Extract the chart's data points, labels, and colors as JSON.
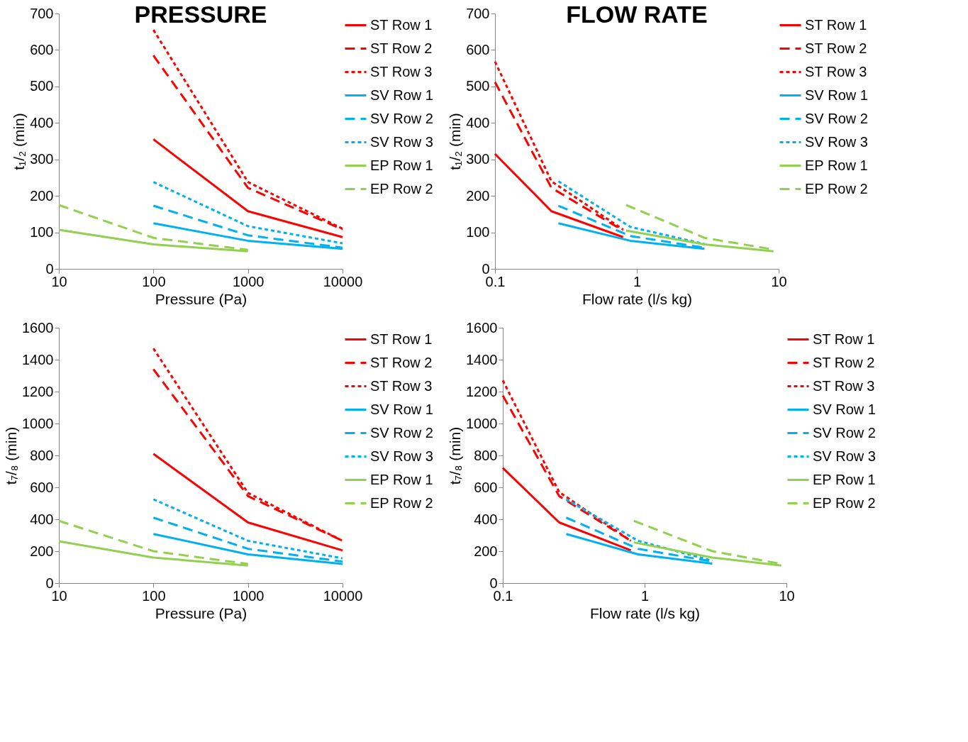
{
  "chart_data": [
    {
      "type": "line",
      "title": "PRESSURE",
      "xlabel": "Pressure (Pa)",
      "ylabel": "t₁/₂ (min)",
      "log": "x",
      "grid": false,
      "legend": "right",
      "marker": "none",
      "xlim": [
        10,
        10000
      ],
      "xticks": [
        10,
        100,
        1000,
        10000
      ],
      "ylim": [
        0,
        700
      ],
      "yticks": [
        0,
        100,
        200,
        300,
        400,
        500,
        600,
        700
      ],
      "series": [
        {
          "name": "ST Row 1",
          "color": "#ff0000",
          "line_style": "solid",
          "x": [
            100,
            1000,
            10000
          ],
          "values": [
            355,
            158,
            87
          ]
        },
        {
          "name": "ST Row 2",
          "color": "#ff0000",
          "line_style": "dashed",
          "x": [
            100,
            1000,
            10000
          ],
          "values": [
            585,
            222,
            108
          ]
        },
        {
          "name": "ST Row 3",
          "color": "#ff0000",
          "line_style": "dotted",
          "x": [
            100,
            1000,
            10000
          ],
          "values": [
            655,
            238,
            110
          ]
        },
        {
          "name": "SV Row 1",
          "color": "#00b0f0",
          "line_style": "solid",
          "x": [
            100,
            1000,
            10000
          ],
          "values": [
            125,
            77,
            55
          ]
        },
        {
          "name": "SV Row 2",
          "color": "#00b0f0",
          "line_style": "dashed",
          "x": [
            100,
            1000,
            10000
          ],
          "values": [
            173,
            92,
            58
          ]
        },
        {
          "name": "SV Row 3",
          "color": "#00b0f0",
          "line_style": "dotted",
          "x": [
            100,
            1000,
            10000
          ],
          "values": [
            238,
            117,
            70
          ]
        },
        {
          "name": "EP Row 1",
          "color": "#92d050",
          "line_style": "solid",
          "x": [
            10,
            100,
            1000
          ],
          "values": [
            107,
            67,
            48
          ]
        },
        {
          "name": "EP Row 2",
          "color": "#92d050",
          "line_style": "dashed",
          "x": [
            10,
            100,
            1000
          ],
          "values": [
            175,
            85,
            52
          ]
        }
      ]
    },
    {
      "type": "line",
      "title": "FLOW RATE",
      "xlabel": "Flow rate (l/s kg)",
      "ylabel": "t₁/₂ (min)",
      "log": "x",
      "grid": false,
      "legend": "right",
      "marker": "none",
      "xlim": [
        0.1,
        10
      ],
      "xticks": [
        0.1,
        1,
        10
      ],
      "ylim": [
        0,
        700
      ],
      "yticks": [
        0,
        100,
        200,
        300,
        400,
        500,
        600,
        700
      ],
      "series": [
        {
          "name": "ST Row 1",
          "color": "#ff0000",
          "line_style": "solid",
          "x": [
            0.1,
            0.25,
            0.8
          ],
          "values": [
            315,
            158,
            87
          ]
        },
        {
          "name": "ST Row 2",
          "color": "#ff0000",
          "line_style": "dashed",
          "x": [
            0.1,
            0.25,
            0.8
          ],
          "values": [
            512,
            222,
            105
          ]
        },
        {
          "name": "ST Row 3",
          "color": "#ff0000",
          "line_style": "dotted",
          "x": [
            0.1,
            0.25,
            0.8
          ],
          "values": [
            568,
            240,
            108
          ]
        },
        {
          "name": "SV Row 1",
          "color": "#00b0f0",
          "line_style": "solid",
          "x": [
            0.28,
            0.9,
            3
          ],
          "values": [
            125,
            77,
            55
          ]
        },
        {
          "name": "SV Row 2",
          "color": "#00b0f0",
          "line_style": "dashed",
          "x": [
            0.28,
            0.9,
            3
          ],
          "values": [
            173,
            90,
            58
          ]
        },
        {
          "name": "SV Row 3",
          "color": "#00b0f0",
          "line_style": "dotted",
          "x": [
            0.28,
            0.9,
            3
          ],
          "values": [
            240,
            115,
            68
          ]
        },
        {
          "name": "EP Row 1",
          "color": "#92d050",
          "line_style": "solid",
          "x": [
            0.84,
            3,
            9.2
          ],
          "values": [
            105,
            67,
            48
          ]
        },
        {
          "name": "EP Row 2",
          "color": "#92d050",
          "line_style": "dashed",
          "x": [
            0.84,
            3,
            9.2
          ],
          "values": [
            175,
            85,
            53
          ]
        }
      ]
    },
    {
      "type": "line",
      "xlabel": "Pressure (Pa)",
      "ylabel": "t₇/₈ (min)",
      "log": "x",
      "grid": false,
      "legend": "right",
      "marker": "none",
      "xlim": [
        10,
        10000
      ],
      "xticks": [
        10,
        100,
        1000,
        10000
      ],
      "ylim": [
        0,
        1600
      ],
      "yticks": [
        0,
        200,
        400,
        600,
        800,
        1000,
        1200,
        1400,
        1600
      ],
      "series": [
        {
          "name": "ST Row 1",
          "color": "#ff0000",
          "line_style": "solid",
          "x": [
            100,
            1000,
            10000
          ],
          "values": [
            810,
            380,
            205
          ]
        },
        {
          "name": "ST Row 2",
          "color": "#ff0000",
          "line_style": "dashed",
          "x": [
            100,
            1000,
            10000
          ],
          "values": [
            1340,
            545,
            265
          ]
        },
        {
          "name": "ST Row 3",
          "color": "#ff0000",
          "line_style": "dotted",
          "x": [
            100,
            1000,
            10000
          ],
          "values": [
            1470,
            565,
            265
          ]
        },
        {
          "name": "SV Row 1",
          "color": "#00b0f0",
          "line_style": "solid",
          "x": [
            100,
            1000,
            10000
          ],
          "values": [
            308,
            180,
            120
          ]
        },
        {
          "name": "SV Row 2",
          "color": "#00b0f0",
          "line_style": "dashed",
          "x": [
            100,
            1000,
            10000
          ],
          "values": [
            410,
            215,
            135
          ]
        },
        {
          "name": "SV Row 3",
          "color": "#00b0f0",
          "line_style": "dotted",
          "x": [
            100,
            1000,
            10000
          ],
          "values": [
            525,
            265,
            155
          ]
        },
        {
          "name": "EP Row 1",
          "color": "#92d050",
          "line_style": "solid",
          "x": [
            10,
            100,
            1000
          ],
          "values": [
            262,
            160,
            110
          ]
        },
        {
          "name": "EP Row 2",
          "color": "#92d050",
          "line_style": "dashed",
          "x": [
            10,
            100,
            1000
          ],
          "values": [
            390,
            200,
            120
          ]
        }
      ]
    },
    {
      "type": "line",
      "xlabel": "Flow rate (l/s kg)",
      "ylabel": "t₇/₈ (min)",
      "log": "x",
      "grid": false,
      "legend": "right",
      "marker": "none",
      "xlim": [
        0.1,
        10
      ],
      "xticks": [
        0.1,
        1,
        10
      ],
      "ylim": [
        0,
        1600
      ],
      "yticks": [
        0,
        200,
        400,
        600,
        800,
        1000,
        1200,
        1400,
        1600
      ],
      "series": [
        {
          "name": "ST Row 1",
          "color": "#ff0000",
          "line_style": "solid",
          "x": [
            0.1,
            0.25,
            0.8
          ],
          "values": [
            722,
            380,
            205
          ]
        },
        {
          "name": "ST Row 2",
          "color": "#ff0000",
          "line_style": "dashed",
          "x": [
            0.1,
            0.25,
            0.8
          ],
          "values": [
            1175,
            545,
            265
          ]
        },
        {
          "name": "ST Row 3",
          "color": "#ff0000",
          "line_style": "dotted",
          "x": [
            0.1,
            0.25,
            0.8
          ],
          "values": [
            1270,
            570,
            265
          ]
        },
        {
          "name": "SV Row 1",
          "color": "#00b0f0",
          "line_style": "solid",
          "x": [
            0.28,
            0.9,
            3
          ],
          "values": [
            308,
            180,
            122
          ]
        },
        {
          "name": "SV Row 2",
          "color": "#00b0f0",
          "line_style": "dashed",
          "x": [
            0.28,
            0.9,
            3
          ],
          "values": [
            410,
            215,
            135
          ]
        },
        {
          "name": "SV Row 3",
          "color": "#00b0f0",
          "line_style": "dotted",
          "x": [
            0.28,
            0.9,
            3
          ],
          "values": [
            525,
            265,
            140
          ]
        },
        {
          "name": "EP Row 1",
          "color": "#92d050",
          "line_style": "solid",
          "x": [
            0.84,
            3,
            9.2
          ],
          "values": [
            255,
            160,
            110
          ]
        },
        {
          "name": "EP Row 2",
          "color": "#92d050",
          "line_style": "dashed",
          "x": [
            0.84,
            3,
            9.2
          ],
          "values": [
            390,
            200,
            120
          ]
        }
      ]
    }
  ]
}
